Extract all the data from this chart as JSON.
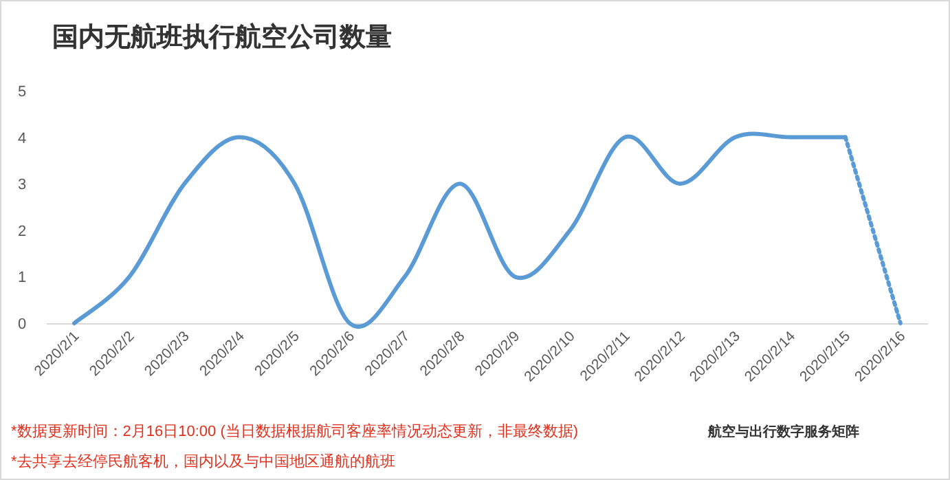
{
  "chart_data": {
    "type": "line",
    "title": "国内无航班执行航空公司数量",
    "categories": [
      "2020/2/1",
      "2020/2/2",
      "2020/2/3",
      "2020/2/4",
      "2020/2/5",
      "2020/2/6",
      "2020/2/7",
      "2020/2/8",
      "2020/2/9",
      "2020/2/10",
      "2020/2/11",
      "2020/2/12",
      "2020/2/13",
      "2020/2/14",
      "2020/2/15",
      "2020/2/16"
    ],
    "series": [
      {
        "color": "#5b9bd5",
        "line_style": "solid",
        "values": [
          0,
          1,
          3,
          4,
          3,
          0,
          1,
          3,
          1,
          2,
          4,
          3,
          4,
          4,
          4,
          null
        ]
      },
      {
        "color": "#5b9bd5",
        "line_style": "dotted",
        "values": [
          null,
          null,
          null,
          null,
          null,
          null,
          null,
          null,
          null,
          null,
          null,
          null,
          null,
          null,
          4,
          0
        ]
      }
    ],
    "ylim": [
      0,
      5
    ],
    "yticks": [
      0,
      1,
      2,
      3,
      4,
      5
    ],
    "grid": false,
    "annotations": [
      "*数据更新时间：2月16日10:00 (当日数据根据航司客座率情况动态更新，非最终数据)",
      "*去共享去经停民航客机，国内以及与中国地区通航的航班",
      "航空与出行数字服务矩阵"
    ]
  }
}
